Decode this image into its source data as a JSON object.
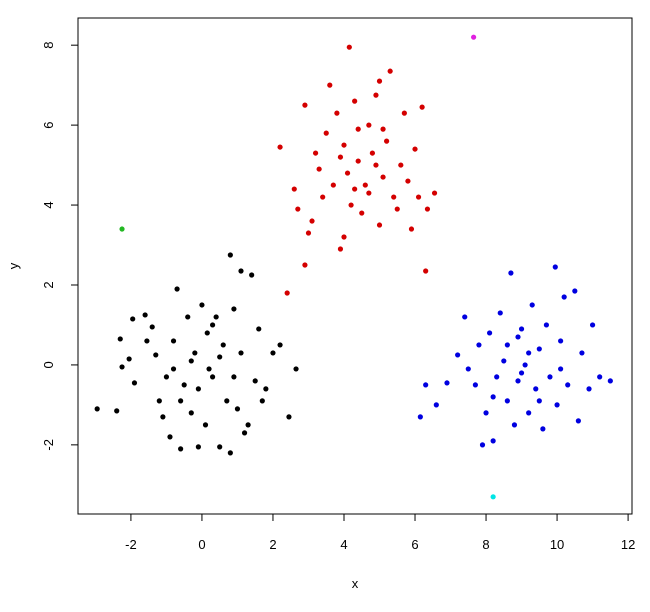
{
  "chart_data": {
    "type": "scatter",
    "x_label": "x",
    "y_label": "y",
    "xlim": [
      -3.49,
      12.11
    ],
    "ylim": [
      -3.73,
      8.68
    ],
    "xticks": [
      -2,
      0,
      2,
      4,
      6,
      8,
      10,
      12
    ],
    "yticks": [
      -2,
      0,
      2,
      4,
      6,
      8
    ],
    "series": [
      {
        "color": "#000000",
        "x": [
          -2.95,
          -2.4,
          -2.3,
          -2.25,
          -2.05,
          -1.9,
          -1.95,
          -1.6,
          -1.55,
          -1.4,
          -1.3,
          -1.1,
          -1.0,
          -0.9,
          -0.8,
          -0.7,
          -0.6,
          -0.5,
          -0.4,
          -0.3,
          -0.2,
          -0.1,
          0,
          0.1,
          0.15,
          0.3,
          0.4,
          0.5,
          0.6,
          0.7,
          0.8,
          0.8,
          0.9,
          1.0,
          1.1,
          1.1,
          1.3,
          1.4,
          1.5,
          1.6,
          1.8,
          2.0,
          2.2,
          2.45,
          2.65,
          0.2,
          -0.3,
          0.5,
          -0.6,
          0.9,
          -1.2,
          0.3,
          -0.1,
          1.2,
          1.7,
          -0.8
        ],
        "y": [
          -1.1,
          -1.15,
          0.65,
          -0.05,
          0.15,
          -0.45,
          1.15,
          1.25,
          0.6,
          0.95,
          0.25,
          -1.3,
          -0.3,
          -1.8,
          0.6,
          1.9,
          -2.1,
          -0.5,
          1.2,
          -1.2,
          0.3,
          -0.6,
          1.5,
          -1.5,
          0.8,
          -0.3,
          1.2,
          -2.05,
          0.5,
          -0.9,
          2.75,
          -2.2,
          1.4,
          -1.1,
          0.3,
          2.35,
          -1.5,
          2.25,
          -0.4,
          0.9,
          -0.6,
          0.3,
          0.5,
          -1.3,
          -0.1,
          -0.1,
          0.1,
          0.2,
          -0.9,
          -0.3,
          -0.9,
          1.0,
          -2.05,
          -1.7,
          -0.9,
          -0.1
        ]
      },
      {
        "color": "#d40000",
        "x": [
          2.2,
          2.6,
          2.7,
          2.9,
          3.0,
          3.1,
          3.2,
          3.3,
          3.5,
          3.6,
          3.7,
          3.8,
          3.9,
          4.0,
          4.0,
          4.1,
          4.15,
          4.2,
          4.3,
          4.4,
          4.5,
          4.6,
          4.7,
          4.8,
          4.9,
          5.0,
          5.0,
          5.1,
          5.2,
          5.3,
          5.4,
          5.5,
          5.6,
          5.7,
          5.8,
          5.9,
          6.0,
          6.1,
          6.2,
          6.35,
          6.55,
          4.4,
          3.9,
          4.7,
          5.1,
          3.4,
          4.9,
          4.3,
          2.4,
          2.9,
          6.3
        ],
        "y": [
          5.45,
          4.4,
          3.9,
          6.5,
          3.3,
          3.6,
          5.3,
          4.9,
          5.8,
          7.0,
          4.5,
          6.3,
          2.9,
          3.2,
          5.5,
          4.8,
          7.95,
          4.0,
          6.6,
          5.1,
          3.8,
          4.5,
          6.0,
          5.3,
          6.75,
          3.5,
          7.1,
          4.7,
          5.6,
          7.35,
          4.2,
          3.9,
          5.0,
          6.3,
          4.6,
          3.4,
          5.4,
          4.2,
          6.45,
          3.9,
          4.3,
          5.9,
          5.2,
          4.3,
          5.9,
          4.2,
          5.0,
          4.4,
          1.8,
          2.5,
          2.35
        ]
      },
      {
        "color": "#0000e0",
        "x": [
          6.15,
          6.3,
          6.6,
          6.9,
          7.2,
          7.4,
          7.5,
          7.7,
          7.8,
          7.9,
          8.0,
          8.1,
          8.2,
          8.3,
          8.4,
          8.5,
          8.6,
          8.7,
          8.8,
          8.9,
          9.0,
          9.1,
          9.2,
          9.3,
          9.4,
          9.5,
          9.6,
          9.7,
          9.8,
          9.95,
          10.0,
          10.1,
          10.2,
          10.3,
          10.5,
          10.6,
          10.7,
          10.9,
          11.0,
          11.2,
          11.5,
          8.9,
          9.2,
          8.6,
          9.5,
          10.1,
          8.2,
          9.0
        ],
        "y": [
          -1.3,
          -0.5,
          -1.0,
          -0.45,
          0.25,
          1.2,
          -0.1,
          -0.5,
          0.5,
          -2.0,
          -1.2,
          0.8,
          -1.9,
          -0.3,
          1.3,
          0.1,
          -0.9,
          2.3,
          -1.5,
          0.7,
          -0.2,
          0.0,
          -1.2,
          1.5,
          -0.6,
          0.4,
          -1.6,
          1.0,
          -0.3,
          2.45,
          -1.0,
          0.6,
          1.7,
          -0.5,
          1.85,
          -1.4,
          0.3,
          -0.6,
          1.0,
          -0.3,
          -0.4,
          -0.4,
          0.3,
          0.5,
          -0.9,
          -0.1,
          -0.8,
          0.9
        ]
      },
      {
        "color": "#22b822",
        "x": [
          -2.25
        ],
        "y": [
          3.4
        ]
      },
      {
        "color": "#e020e0",
        "x": [
          7.65
        ],
        "y": [
          8.2
        ]
      },
      {
        "color": "#00e5e5",
        "x": [
          8.2
        ],
        "y": [
          -3.3
        ]
      }
    ]
  }
}
